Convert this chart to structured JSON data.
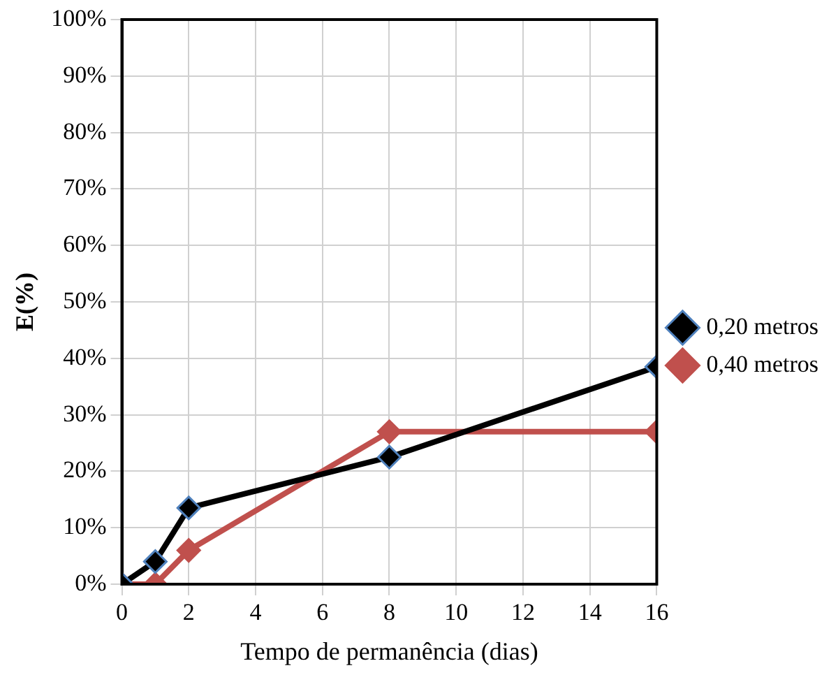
{
  "chart_data": {
    "type": "line",
    "xlabel": "Tempo de permanência (dias)",
    "ylabel": "E(%)",
    "x": [
      0,
      1,
      2,
      8,
      16
    ],
    "series": [
      {
        "name": "0,20 metros",
        "color": "#000000",
        "values": [
          0,
          4,
          13.5,
          22.5,
          38.5
        ]
      },
      {
        "name": "0,40 metros",
        "color": "#c0504d",
        "values": [
          0,
          0,
          6,
          27,
          27
        ]
      }
    ],
    "xlim": [
      0,
      16
    ],
    "xticks": [
      0,
      2,
      4,
      6,
      8,
      10,
      12,
      14,
      16
    ],
    "ylim": [
      0,
      100
    ],
    "yticks": [
      {
        "value": 0,
        "label": "0%"
      },
      {
        "value": 10,
        "label": "10%"
      },
      {
        "value": 20,
        "label": "20%"
      },
      {
        "value": 30,
        "label": "30%"
      },
      {
        "value": 40,
        "label": "40%"
      },
      {
        "value": 50,
        "label": "50%"
      },
      {
        "value": 60,
        "label": "60%"
      },
      {
        "value": 70,
        "label": "70%"
      },
      {
        "value": 80,
        "label": "80%"
      },
      {
        "value": 90,
        "label": "90%"
      },
      {
        "value": 100,
        "label": "100%"
      }
    ],
    "grid": true,
    "legend": "right",
    "marker": "diamond",
    "line_style": "solid"
  }
}
